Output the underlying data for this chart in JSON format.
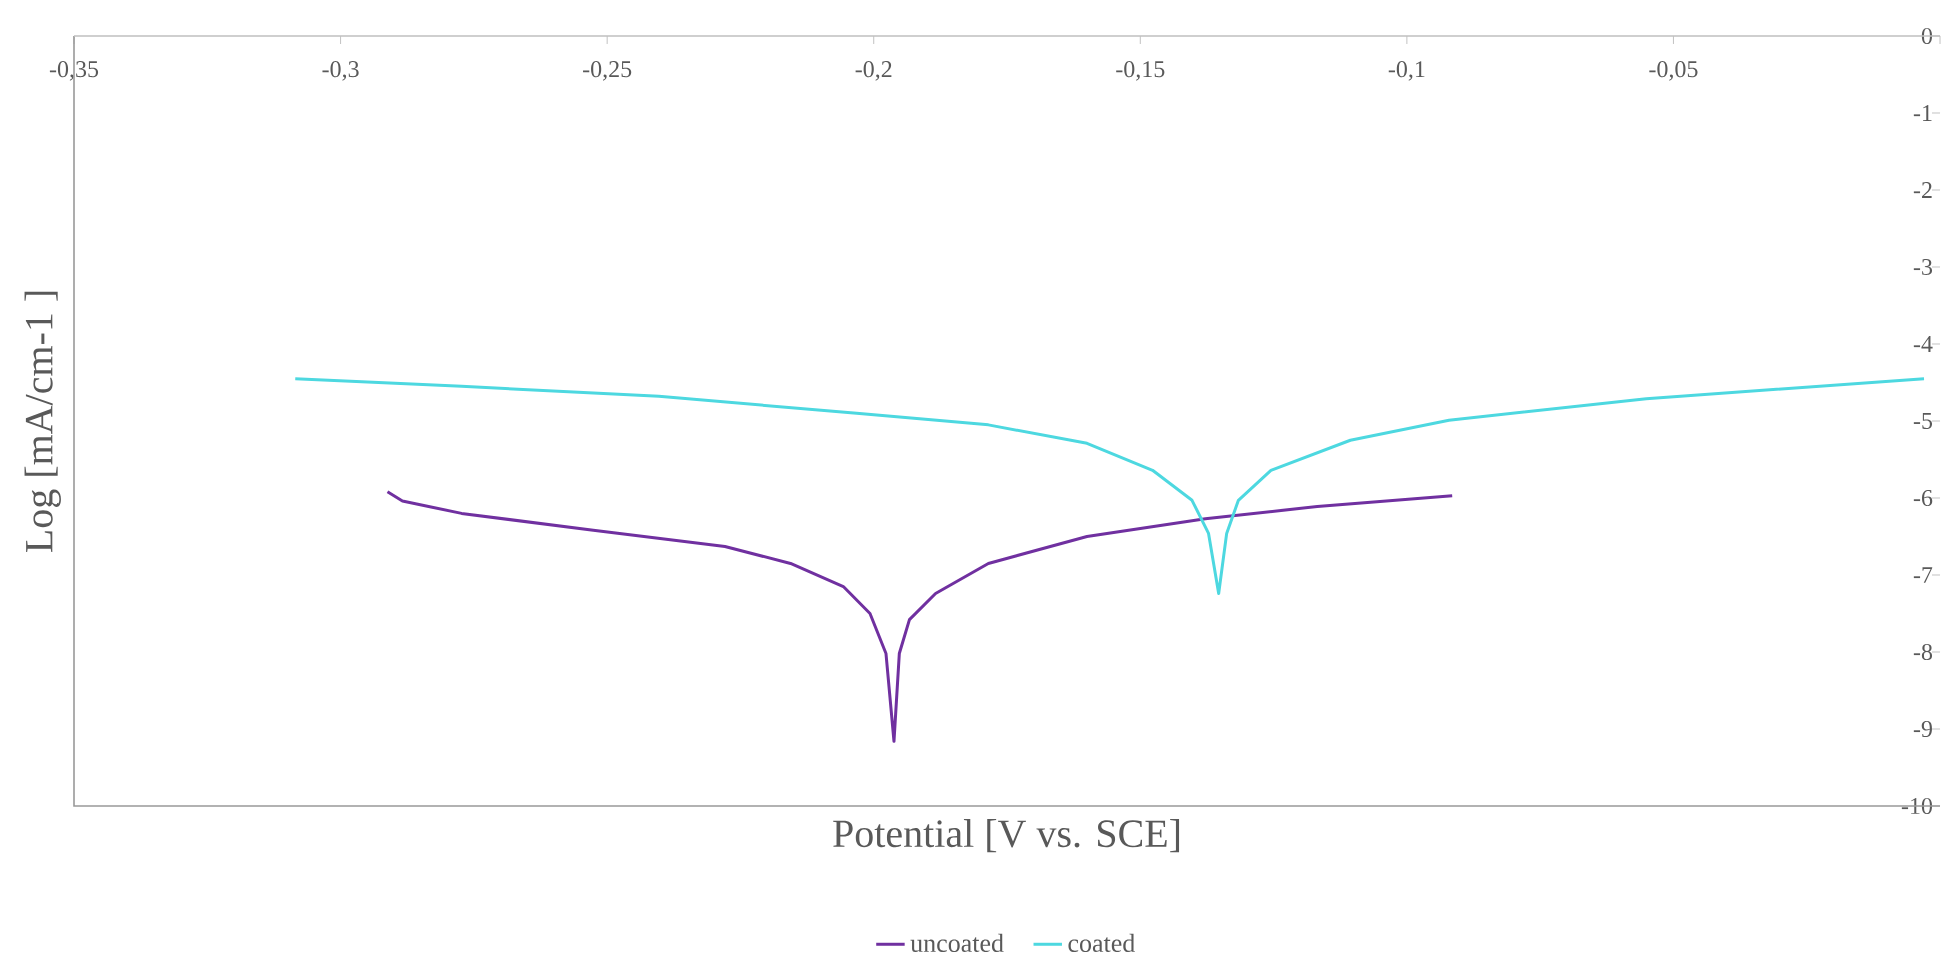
{
  "chart_data": {
    "type": "line",
    "xlabel": "Potential [V vs. SCE]",
    "ylabel": "Log [mA/cm-1 ]",
    "xlim": [
      -0.35,
      0
    ],
    "ylim": [
      -10,
      0
    ],
    "xticks": [
      {
        "value": -0.35,
        "label": "-0,35"
      },
      {
        "value": -0.3,
        "label": "-0,3"
      },
      {
        "value": -0.25,
        "label": "-0,25"
      },
      {
        "value": -0.2,
        "label": "-0,2"
      },
      {
        "value": -0.15,
        "label": "-0,15"
      },
      {
        "value": -0.1,
        "label": "-0,1"
      },
      {
        "value": -0.05,
        "label": "-0,05"
      },
      {
        "value": 0,
        "label": null
      }
    ],
    "yticks": [
      0,
      -1,
      -2,
      -3,
      -4,
      -5,
      -6,
      -7,
      -8,
      -9,
      -10
    ],
    "legend": "bottom",
    "series": [
      {
        "name": "uncoated",
        "color": "#7030a0",
        "x": [
          -0.2912,
          -0.2884,
          -0.2773,
          -0.2526,
          -0.2279,
          -0.2156,
          -0.2057,
          -0.2007,
          -0.1977,
          -0.1962,
          -0.1952,
          -0.1933,
          -0.1884,
          -0.1785,
          -0.16,
          -0.1378,
          -0.1168,
          -0.0915
        ],
        "values": [
          -5.92,
          -6.04,
          -6.2,
          -6.42,
          -6.63,
          -6.85,
          -7.15,
          -7.5,
          -8.02,
          -9.16,
          -8.02,
          -7.58,
          -7.24,
          -6.85,
          -6.5,
          -6.27,
          -6.11,
          -5.97
        ]
      },
      {
        "name": "coated",
        "color": "#4dd8e0",
        "x": [
          -0.3085,
          -0.2773,
          -0.2403,
          -0.2032,
          -0.1785,
          -0.16,
          -0.1477,
          -0.1403,
          -0.1372,
          -0.1353,
          -0.1338,
          -0.1316,
          -0.1255,
          -0.1106,
          -0.0921,
          -0.0551,
          -0.003
        ],
        "values": [
          -4.45,
          -4.55,
          -4.68,
          -4.9,
          -5.05,
          -5.29,
          -5.64,
          -6.03,
          -6.46,
          -7.24,
          -6.46,
          -6.03,
          -5.64,
          -5.25,
          -4.99,
          -4.71,
          -4.45
        ]
      }
    ]
  }
}
